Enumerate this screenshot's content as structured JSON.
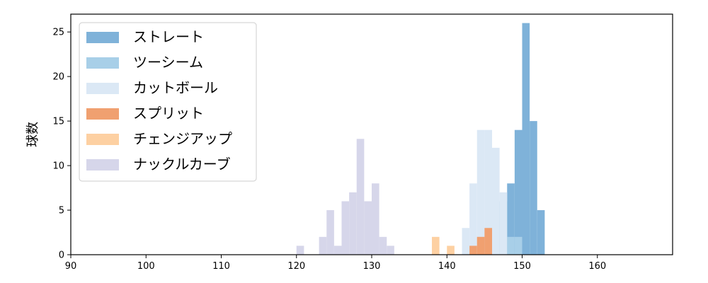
{
  "chart_data": {
    "type": "histogram",
    "xlabel": "",
    "ylabel": "球数",
    "xlim": [
      90,
      170
    ],
    "ylim": [
      0,
      27
    ],
    "xticks": [
      90,
      100,
      110,
      120,
      130,
      140,
      150,
      160
    ],
    "yticks": [
      0,
      5,
      10,
      15,
      20,
      25
    ],
    "bin_width": 1,
    "grid": false,
    "legend_position": "top-left",
    "series": [
      {
        "name": "ストレート",
        "color": "#7fb2d9",
        "bins": [
          {
            "x": 148,
            "count": 2
          },
          {
            "x": 149,
            "count": 1
          },
          {
            "x": 147,
            "count": 6
          },
          {
            "x": 148,
            "count": 8
          },
          {
            "x": 149,
            "count": 14
          },
          {
            "x": 150,
            "count": 26
          },
          {
            "x": 151,
            "count": 15
          },
          {
            "x": 152,
            "count": 5
          }
        ]
      },
      {
        "name": "ツーシーム",
        "color": "#a8cfe8",
        "bins": [
          {
            "x": 145,
            "count": 3
          },
          {
            "x": 146,
            "count": 6
          },
          {
            "x": 147,
            "count": 6
          },
          {
            "x": 148,
            "count": 2
          },
          {
            "x": 149,
            "count": 2
          }
        ]
      },
      {
        "name": "カットボール",
        "color": "#dbe8f5",
        "bins": [
          {
            "x": 142,
            "count": 3
          },
          {
            "x": 143,
            "count": 8
          },
          {
            "x": 144,
            "count": 14
          },
          {
            "x": 145,
            "count": 14
          },
          {
            "x": 146,
            "count": 12
          },
          {
            "x": 147,
            "count": 7
          }
        ]
      },
      {
        "name": "スプリット",
        "color": "#f0a070",
        "bins": [
          {
            "x": 143,
            "count": 1
          },
          {
            "x": 144,
            "count": 2
          },
          {
            "x": 145,
            "count": 3
          }
        ]
      },
      {
        "name": "チェンジアップ",
        "color": "#fdd0a2",
        "bins": [
          {
            "x": 138,
            "count": 2
          },
          {
            "x": 140,
            "count": 1
          }
        ]
      },
      {
        "name": "ナックルカーブ",
        "color": "#d6d6ea",
        "bins": [
          {
            "x": 120,
            "count": 1
          },
          {
            "x": 123,
            "count": 2
          },
          {
            "x": 124,
            "count": 5
          },
          {
            "x": 125,
            "count": 1
          },
          {
            "x": 126,
            "count": 6
          },
          {
            "x": 127,
            "count": 7
          },
          {
            "x": 128,
            "count": 13
          },
          {
            "x": 129,
            "count": 6
          },
          {
            "x": 130,
            "count": 8
          },
          {
            "x": 131,
            "count": 2
          },
          {
            "x": 132,
            "count": 1
          }
        ]
      }
    ]
  }
}
